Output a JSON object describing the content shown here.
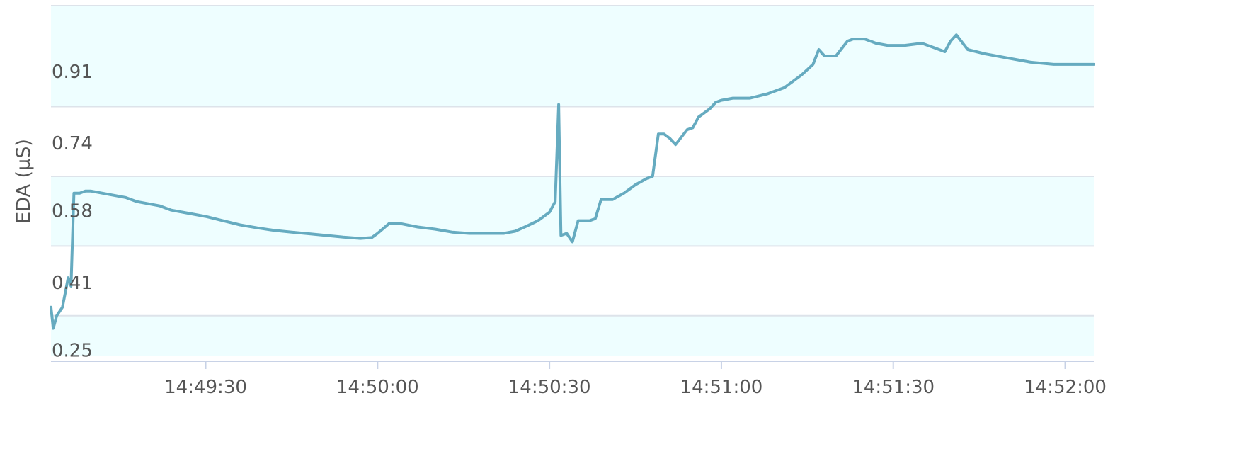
{
  "chart_data": {
    "type": "area",
    "title": "",
    "xlabel": "",
    "ylabel": "EDA (µS)",
    "x_tick_labels": [
      "14:49:30",
      "14:50:00",
      "14:50:30",
      "14:51:00",
      "14:51:30",
      "14:52:00"
    ],
    "x_tick_times": [
      "14:49:30",
      "14:50:00",
      "14:50:30",
      "14:51:00",
      "14:51:30",
      "14:52:00"
    ],
    "xlim": [
      "14:49:03",
      "14:52:05"
    ],
    "y_tick_labels": [
      "0.25",
      "0.41",
      "0.58",
      "0.74",
      "0.91"
    ],
    "y_ticks": [
      0.25,
      0.41,
      0.58,
      0.74,
      0.91
    ],
    "ylim": [
      0.234,
      1.064
    ],
    "grid": true,
    "band_color": "#EEFEFF",
    "line_color": "#66ABC0",
    "series": [
      {
        "name": "",
        "x": [
          "14:49:03",
          "14:49:03.4",
          "14:49:04",
          "14:49:05",
          "14:49:06",
          "14:49:06.5",
          "14:49:07",
          "14:49:07.4",
          "14:49:08",
          "14:49:09",
          "14:49:10",
          "14:49:12",
          "14:49:14",
          "14:49:16",
          "14:49:18",
          "14:49:20",
          "14:49:22",
          "14:49:24",
          "14:49:26",
          "14:49:28",
          "14:49:30",
          "14:49:33",
          "14:49:36",
          "14:49:39",
          "14:49:42",
          "14:49:45",
          "14:49:48",
          "14:49:51",
          "14:49:54",
          "14:49:57",
          "14:49:59",
          "14:50:00",
          "14:50:02",
          "14:50:04",
          "14:50:07",
          "14:50:10",
          "14:50:13",
          "14:50:16",
          "14:50:19",
          "14:50:22",
          "14:50:24",
          "14:50:26",
          "14:50:28",
          "14:50:30",
          "14:50:31",
          "14:50:31.6",
          "14:50:32",
          "14:50:33",
          "14:50:34",
          "14:50:35",
          "14:50:37",
          "14:50:38",
          "14:50:39",
          "14:50:41",
          "14:50:43",
          "14:50:45",
          "14:50:47",
          "14:50:48",
          "14:50:49",
          "14:50:50",
          "14:50:51",
          "14:50:52",
          "14:50:54",
          "14:50:55",
          "14:50:56",
          "14:50:58",
          "14:50:59",
          "14:51:00",
          "14:51:02",
          "14:51:05",
          "14:51:08",
          "14:51:11",
          "14:51:13",
          "14:51:14",
          "14:51:16",
          "14:51:17",
          "14:51:18",
          "14:51:20",
          "14:51:22",
          "14:51:23",
          "14:51:25",
          "14:51:27",
          "14:51:29",
          "14:51:32",
          "14:51:35",
          "14:51:37",
          "14:51:39",
          "14:51:40",
          "14:51:41",
          "14:51:43",
          "14:51:46",
          "14:51:50",
          "14:51:54",
          "14:51:58",
          "14:52:02",
          "14:52:05"
        ],
        "values": [
          0.35,
          0.3,
          0.33,
          0.35,
          0.42,
          0.4,
          0.62,
          0.62,
          0.62,
          0.625,
          0.625,
          0.62,
          0.615,
          0.61,
          0.6,
          0.595,
          0.59,
          0.58,
          0.575,
          0.57,
          0.565,
          0.555,
          0.545,
          0.538,
          0.532,
          0.528,
          0.524,
          0.52,
          0.516,
          0.513,
          0.515,
          0.525,
          0.548,
          0.548,
          0.54,
          0.535,
          0.528,
          0.525,
          0.525,
          0.525,
          0.53,
          0.542,
          0.555,
          0.575,
          0.6,
          0.83,
          0.52,
          0.525,
          0.505,
          0.555,
          0.555,
          0.56,
          0.605,
          0.605,
          0.62,
          0.64,
          0.655,
          0.66,
          0.76,
          0.76,
          0.75,
          0.735,
          0.77,
          0.775,
          0.8,
          0.82,
          0.835,
          0.84,
          0.845,
          0.845,
          0.855,
          0.87,
          0.89,
          0.9,
          0.925,
          0.96,
          0.945,
          0.945,
          0.98,
          0.985,
          0.985,
          0.975,
          0.97,
          0.97,
          0.975,
          0.965,
          0.955,
          0.98,
          0.995,
          0.96,
          0.95,
          0.94,
          0.93,
          0.925,
          0.925,
          0.925
        ]
      }
    ]
  }
}
